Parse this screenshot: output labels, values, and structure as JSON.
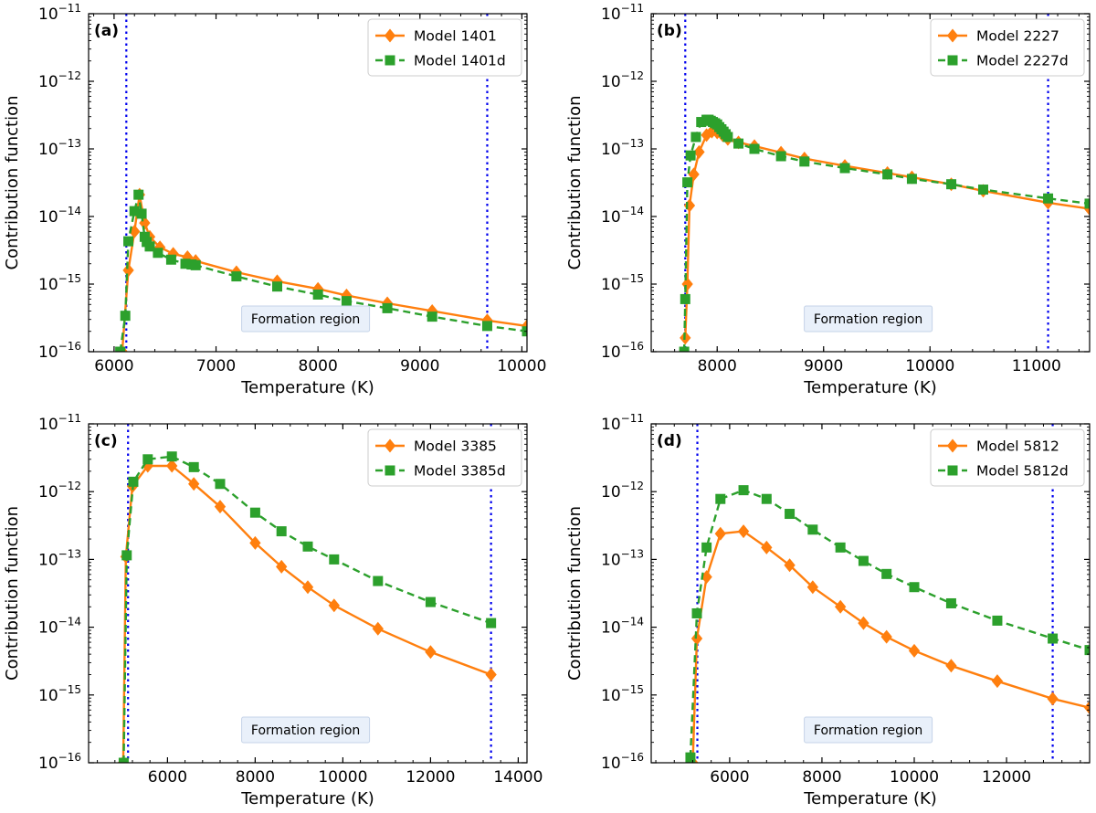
{
  "chart_data": [
    {
      "panel": "(a)",
      "type": "line",
      "xlabel": "Temperature (K)",
      "ylabel": "Contribution function",
      "yscale": "log",
      "xlim": [
        5750,
        10050
      ],
      "ylim": [
        1e-16,
        1e-11
      ],
      "xticks": [
        6000,
        7000,
        8000,
        9000,
        10000
      ],
      "yticks": [
        {
          "base": "10",
          "exp": "−11"
        },
        {
          "base": "10",
          "exp": "−12"
        },
        {
          "base": "10",
          "exp": "−13"
        },
        {
          "base": "10",
          "exp": "−14"
        },
        {
          "base": "10",
          "exp": "−15"
        },
        {
          "base": "10",
          "exp": "−16"
        }
      ],
      "vlines": [
        6120,
        9660
      ],
      "annotation": "Formation region",
      "legend_position": "top-right",
      "series": [
        {
          "name": "Model 1401",
          "color": "#ff7f0e",
          "style": "solid",
          "marker": "diamond",
          "x": [
            6080,
            6140,
            6200,
            6250,
            6300,
            6350,
            6450,
            6580,
            6720,
            6800,
            7200,
            7600,
            8000,
            8280,
            8680,
            9120,
            9660,
            10050
          ],
          "y": [
            1e-16,
            1.6e-15,
            6e-15,
            2.1e-14,
            8e-15,
            5e-15,
            3.5e-15,
            2.8e-15,
            2.5e-15,
            2.2e-15,
            1.5e-15,
            1.1e-15,
            8.5e-16,
            6.8e-16,
            5.2e-16,
            4e-16,
            2.9e-16,
            2.4e-16
          ]
        },
        {
          "name": "Model 1401d",
          "color": "#2ca02c",
          "style": "dashed",
          "marker": "square",
          "x": [
            6060,
            6110,
            6140,
            6200,
            6240,
            6270,
            6300,
            6320,
            6350,
            6430,
            6560,
            6700,
            6760,
            6800,
            7200,
            7600,
            8000,
            8280,
            8680,
            9120,
            9660,
            10050
          ],
          "y": [
            1e-16,
            3.4e-16,
            4.3e-15,
            1.2e-14,
            2.1e-14,
            1.1e-14,
            5e-15,
            4.2e-15,
            3.6e-15,
            2.9e-15,
            2.3e-15,
            2e-15,
            1.95e-15,
            1.9e-15,
            1.3e-15,
            9.2e-16,
            7e-16,
            5.6e-16,
            4.4e-16,
            3.3e-16,
            2.4e-16,
            2e-16
          ]
        }
      ]
    },
    {
      "panel": "(b)",
      "type": "line",
      "xlabel": "Temperature (K)",
      "ylabel": "Contribution function",
      "yscale": "log",
      "xlim": [
        7380,
        11500
      ],
      "ylim": [
        1e-16,
        1e-11
      ],
      "xticks": [
        8000,
        9000,
        10000,
        11000
      ],
      "yticks": [
        {
          "base": "10",
          "exp": "−11"
        },
        {
          "base": "10",
          "exp": "−12"
        },
        {
          "base": "10",
          "exp": "−13"
        },
        {
          "base": "10",
          "exp": "−14"
        },
        {
          "base": "10",
          "exp": "−15"
        },
        {
          "base": "10",
          "exp": "−16"
        }
      ],
      "vlines": [
        7700,
        11110
      ],
      "annotation": "Formation region",
      "legend_position": "top-right",
      "series": [
        {
          "name": "Model 2227",
          "color": "#ff7f0e",
          "style": "solid",
          "marker": "diamond",
          "x": [
            7700,
            7720,
            7740,
            7780,
            7830,
            7900,
            7950,
            8000,
            8050,
            8100,
            8200,
            8350,
            8600,
            8820,
            9200,
            9600,
            9830,
            10200,
            10500,
            11110,
            11500
          ],
          "y": [
            1.6e-16,
            1e-15,
            1.45e-14,
            4.2e-14,
            9e-14,
            1.6e-13,
            1.8e-13,
            1.75e-13,
            1.6e-13,
            1.4e-13,
            1.25e-13,
            1.1e-13,
            8.8e-14,
            7.2e-14,
            5.6e-14,
            4.4e-14,
            3.8e-14,
            3e-14,
            2.4e-14,
            1.6e-14,
            1.3e-14
          ]
        },
        {
          "name": "Model 2227d",
          "color": "#2ca02c",
          "style": "dashed",
          "marker": "square",
          "x": [
            7690,
            7700,
            7720,
            7750,
            7800,
            7850,
            7900,
            7920,
            7940,
            7960,
            7980,
            8000,
            8020,
            8040,
            8060,
            8080,
            8100,
            8200,
            8350,
            8600,
            8820,
            9200,
            9600,
            9830,
            10200,
            10500,
            11110,
            11500
          ],
          "y": [
            1e-16,
            6e-16,
            3.2e-14,
            8e-14,
            1.5e-13,
            2.5e-13,
            2.7e-13,
            2.7e-13,
            2.6e-13,
            2.5e-13,
            2.4e-13,
            2.3e-13,
            2.1e-13,
            1.95e-13,
            1.8e-13,
            1.65e-13,
            1.5e-13,
            1.2e-13,
            1e-13,
            7.8e-14,
            6.5e-14,
            5.2e-14,
            4.2e-14,
            3.6e-14,
            3e-14,
            2.5e-14,
            1.85e-14,
            1.55e-14
          ]
        }
      ]
    },
    {
      "panel": "(c)",
      "type": "line",
      "xlabel": "Temperature (K)",
      "ylabel": "Contribution function",
      "yscale": "log",
      "xlim": [
        4200,
        14200
      ],
      "ylim": [
        1e-16,
        1e-11
      ],
      "xticks": [
        6000,
        8000,
        10000,
        12000,
        14000
      ],
      "yticks": [
        {
          "base": "10",
          "exp": "−11"
        },
        {
          "base": "10",
          "exp": "−12"
        },
        {
          "base": "10",
          "exp": "−13"
        },
        {
          "base": "10",
          "exp": "−14"
        },
        {
          "base": "10",
          "exp": "−15"
        },
        {
          "base": "10",
          "exp": "−16"
        }
      ],
      "vlines": [
        5100,
        13380
      ],
      "annotation": "Formation region",
      "legend_position": "top-right",
      "series": [
        {
          "name": "Model 3385",
          "color": "#ff7f0e",
          "style": "solid",
          "marker": "diamond",
          "x": [
            4990,
            5050,
            5200,
            5550,
            6100,
            6600,
            7200,
            8000,
            8600,
            9200,
            9800,
            10800,
            12000,
            13380
          ],
          "y": [
            1e-16,
            1.1e-13,
            1.2e-12,
            2.4e-12,
            2.4e-12,
            1.3e-12,
            6e-13,
            1.75e-13,
            7.8e-14,
            3.9e-14,
            2.1e-14,
            9.5e-15,
            4.3e-15,
            2e-15
          ]
        },
        {
          "name": "Model 3385d",
          "color": "#2ca02c",
          "style": "dashed",
          "marker": "square",
          "x": [
            5000,
            5070,
            5220,
            5550,
            6100,
            6600,
            7200,
            8000,
            8600,
            9200,
            9800,
            10800,
            12000,
            13380
          ],
          "y": [
            1e-16,
            1.15e-13,
            1.4e-12,
            3e-12,
            3.3e-12,
            2.3e-12,
            1.3e-12,
            4.9e-13,
            2.6e-13,
            1.55e-13,
            1e-13,
            4.8e-14,
            2.35e-14,
            1.15e-14
          ]
        }
      ]
    },
    {
      "panel": "(d)",
      "type": "line",
      "xlabel": "Temperature (K)",
      "ylabel": "Contribution function",
      "yscale": "log",
      "xlim": [
        4300,
        13800
      ],
      "ylim": [
        1e-16,
        1e-11
      ],
      "xticks": [
        6000,
        8000,
        10000,
        12000
      ],
      "yticks": [
        {
          "base": "10",
          "exp": "−11"
        },
        {
          "base": "10",
          "exp": "−12"
        },
        {
          "base": "10",
          "exp": "−13"
        },
        {
          "base": "10",
          "exp": "−14"
        },
        {
          "base": "10",
          "exp": "−15"
        },
        {
          "base": "10",
          "exp": "−16"
        }
      ],
      "vlines": [
        5300,
        13000
      ],
      "annotation": "Formation region",
      "legend_position": "top-right",
      "series": [
        {
          "name": "Model 5812",
          "color": "#ff7f0e",
          "style": "solid",
          "marker": "diamond",
          "x": [
            5200,
            5290,
            5500,
            5800,
            6300,
            6800,
            7300,
            7800,
            8400,
            8900,
            9400,
            10000,
            10800,
            11800,
            13000,
            13800
          ],
          "y": [
            1e-16,
            6.8e-15,
            5.5e-14,
            2.4e-13,
            2.6e-13,
            1.5e-13,
            8.2e-14,
            3.9e-14,
            2e-14,
            1.15e-14,
            7.2e-15,
            4.5e-15,
            2.7e-15,
            1.6e-15,
            8.8e-16,
            6.5e-16
          ]
        },
        {
          "name": "Model 5812d",
          "color": "#2ca02c",
          "style": "dashed",
          "marker": "square",
          "x": [
            5150,
            5290,
            5500,
            5800,
            6300,
            6800,
            7300,
            7800,
            8400,
            8900,
            9400,
            10000,
            10800,
            11800,
            13000,
            13800
          ],
          "y": [
            1.2e-16,
            1.6e-14,
            1.5e-13,
            7.8e-13,
            1.05e-12,
            7.8e-13,
            4.7e-13,
            2.75e-13,
            1.5e-13,
            9.5e-14,
            6.1e-14,
            3.9e-14,
            2.25e-14,
            1.25e-14,
            6.8e-15,
            4.6e-15
          ]
        }
      ]
    }
  ]
}
